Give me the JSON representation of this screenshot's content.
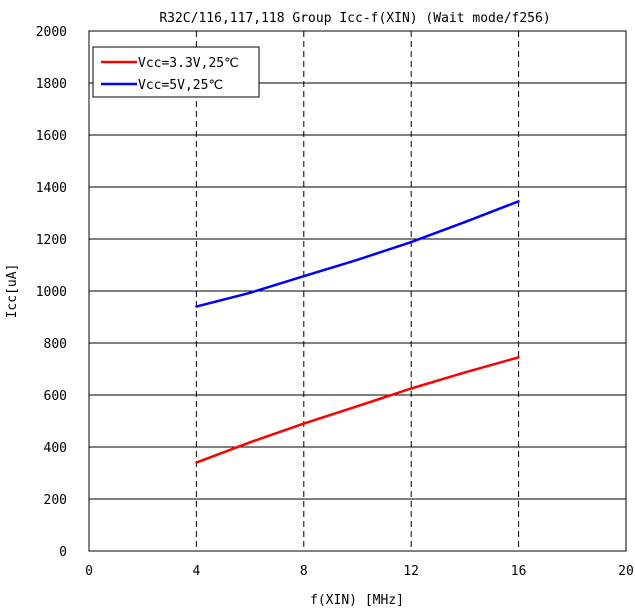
{
  "chart_data": {
    "type": "line",
    "title": "R32C/116,117,118 Group Icc-f(XIN) (Wait mode/f256)",
    "xlabel": "f(XIN) [MHz]",
    "ylabel": "Icc[uA]",
    "xlim": [
      0,
      20
    ],
    "ylim": [
      0,
      2000
    ],
    "x_ticks": [
      "0",
      "4",
      "8",
      "12",
      "16",
      "20"
    ],
    "y_ticks": [
      "0",
      "200",
      "400",
      "600",
      "800",
      "1000",
      "1200",
      "1400",
      "1600",
      "1800",
      "2000"
    ],
    "grid": {
      "x": "dashed",
      "y": "solid"
    },
    "legend_position": "top-left",
    "series": [
      {
        "name": "Vcc=3.3V,25℃",
        "color": "#ff0000",
        "x": [
          4,
          6,
          8,
          10,
          12,
          14,
          16
        ],
        "y": [
          340,
          418,
          490,
          557,
          625,
          687,
          745
        ]
      },
      {
        "name": "Vcc=5V,25℃",
        "color": "#0000ff",
        "x": [
          4,
          6,
          8,
          10,
          12,
          14,
          16
        ],
        "y": [
          940,
          993,
          1057,
          1120,
          1188,
          1265,
          1345
        ]
      }
    ]
  }
}
